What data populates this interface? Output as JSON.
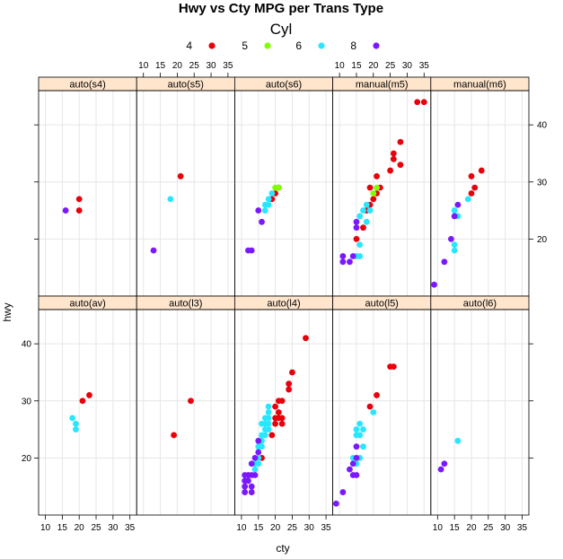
{
  "chart_data": {
    "type": "scatter",
    "title": "Hwy vs Cty MPG per Trans Type",
    "xlabel": "cty",
    "ylabel": "hwy",
    "xlim": [
      8,
      37
    ],
    "ylim": [
      10,
      46
    ],
    "x_ticks": [
      10,
      15,
      20,
      25,
      30,
      35
    ],
    "y_ticks": [
      20,
      30,
      40
    ],
    "grid": true,
    "legend": {
      "title": "Cyl",
      "position": "top",
      "entries": [
        {
          "label": "4",
          "color": "#e8000b"
        },
        {
          "label": "5",
          "color": "#80ff00"
        },
        {
          "label": "6",
          "color": "#29e6ff"
        },
        {
          "label": "8",
          "color": "#7b18ff"
        }
      ]
    },
    "strip_color": "#ffe5cc",
    "panels": [
      {
        "label": "auto(s4)",
        "row": 0,
        "col": 0,
        "points": [
          {
            "x": 20,
            "y": 27,
            "cyl": "4"
          },
          {
            "x": 20,
            "y": 25,
            "cyl": "4"
          },
          {
            "x": 16,
            "y": 25,
            "cyl": "8"
          }
        ]
      },
      {
        "label": "auto(s5)",
        "row": 0,
        "col": 1,
        "points": [
          {
            "x": 21,
            "y": 31,
            "cyl": "4"
          },
          {
            "x": 18,
            "y": 27,
            "cyl": "6"
          },
          {
            "x": 13,
            "y": 18,
            "cyl": "8"
          }
        ]
      },
      {
        "label": "auto(s6)",
        "row": 0,
        "col": 2,
        "points": [
          {
            "x": 21,
            "y": 29,
            "cyl": "4"
          },
          {
            "x": 19,
            "y": 27,
            "cyl": "4"
          },
          {
            "x": 20,
            "y": 28,
            "cyl": "4"
          },
          {
            "x": 20,
            "y": 29,
            "cyl": "5"
          },
          {
            "x": 21,
            "y": 29,
            "cyl": "5"
          },
          {
            "x": 17,
            "y": 25,
            "cyl": "6"
          },
          {
            "x": 17,
            "y": 26,
            "cyl": "6"
          },
          {
            "x": 18,
            "y": 26,
            "cyl": "6"
          },
          {
            "x": 19,
            "y": 28,
            "cyl": "6"
          },
          {
            "x": 18,
            "y": 27,
            "cyl": "6"
          },
          {
            "x": 15,
            "y": 25,
            "cyl": "8"
          },
          {
            "x": 16,
            "y": 23,
            "cyl": "8"
          },
          {
            "x": 12,
            "y": 18,
            "cyl": "8"
          },
          {
            "x": 13,
            "y": 18,
            "cyl": "8"
          }
        ]
      },
      {
        "label": "manual(m5)",
        "row": 0,
        "col": 3,
        "points": [
          {
            "x": 33,
            "y": 44,
            "cyl": "4"
          },
          {
            "x": 35,
            "y": 44,
            "cyl": "4"
          },
          {
            "x": 28,
            "y": 37,
            "cyl": "4"
          },
          {
            "x": 26,
            "y": 35,
            "cyl": "4"
          },
          {
            "x": 26,
            "y": 34,
            "cyl": "4"
          },
          {
            "x": 28,
            "y": 33,
            "cyl": "4"
          },
          {
            "x": 25,
            "y": 32,
            "cyl": "4"
          },
          {
            "x": 21,
            "y": 31,
            "cyl": "4"
          },
          {
            "x": 22,
            "y": 29,
            "cyl": "4"
          },
          {
            "x": 19,
            "y": 29,
            "cyl": "4"
          },
          {
            "x": 21,
            "y": 28,
            "cyl": "4"
          },
          {
            "x": 20,
            "y": 27,
            "cyl": "4"
          },
          {
            "x": 19,
            "y": 26,
            "cyl": "4"
          },
          {
            "x": 18,
            "y": 25,
            "cyl": "4"
          },
          {
            "x": 17,
            "y": 22,
            "cyl": "4"
          },
          {
            "x": 15,
            "y": 20,
            "cyl": "4"
          },
          {
            "x": 20,
            "y": 28,
            "cyl": "5"
          },
          {
            "x": 21,
            "y": 29,
            "cyl": "5"
          },
          {
            "x": 18,
            "y": 26,
            "cyl": "6"
          },
          {
            "x": 17,
            "y": 25,
            "cyl": "6"
          },
          {
            "x": 19,
            "y": 25,
            "cyl": "6"
          },
          {
            "x": 16,
            "y": 24,
            "cyl": "6"
          },
          {
            "x": 18,
            "y": 23,
            "cyl": "6"
          },
          {
            "x": 16,
            "y": 19,
            "cyl": "6"
          },
          {
            "x": 15,
            "y": 17,
            "cyl": "6"
          },
          {
            "x": 16,
            "y": 17,
            "cyl": "6"
          },
          {
            "x": 15,
            "y": 23,
            "cyl": "8"
          },
          {
            "x": 15,
            "y": 22,
            "cyl": "8"
          },
          {
            "x": 14,
            "y": 17,
            "cyl": "8"
          },
          {
            "x": 11,
            "y": 17,
            "cyl": "8"
          },
          {
            "x": 11,
            "y": 16,
            "cyl": "8"
          },
          {
            "x": 13,
            "y": 16,
            "cyl": "8"
          }
        ]
      },
      {
        "label": "manual(m6)",
        "row": 0,
        "col": 4,
        "points": [
          {
            "x": 23,
            "y": 32,
            "cyl": "4"
          },
          {
            "x": 20,
            "y": 31,
            "cyl": "4"
          },
          {
            "x": 21,
            "y": 29,
            "cyl": "4"
          },
          {
            "x": 20,
            "y": 28,
            "cyl": "4"
          },
          {
            "x": 19,
            "y": 27,
            "cyl": "6"
          },
          {
            "x": 15,
            "y": 25,
            "cyl": "6"
          },
          {
            "x": 16,
            "y": 24,
            "cyl": "6"
          },
          {
            "x": 15,
            "y": 19,
            "cyl": "6"
          },
          {
            "x": 15,
            "y": 18,
            "cyl": "6"
          },
          {
            "x": 16,
            "y": 26,
            "cyl": "8"
          },
          {
            "x": 15,
            "y": 24,
            "cyl": "8"
          },
          {
            "x": 14,
            "y": 20,
            "cyl": "8"
          },
          {
            "x": 12,
            "y": 16,
            "cyl": "8"
          },
          {
            "x": 9,
            "y": 12,
            "cyl": "8"
          }
        ]
      },
      {
        "label": "auto(av)",
        "row": 1,
        "col": 0,
        "points": [
          {
            "x": 23,
            "y": 31,
            "cyl": "4"
          },
          {
            "x": 21,
            "y": 30,
            "cyl": "4"
          },
          {
            "x": 18,
            "y": 27,
            "cyl": "6"
          },
          {
            "x": 19,
            "y": 26,
            "cyl": "6"
          },
          {
            "x": 19,
            "y": 25,
            "cyl": "6"
          }
        ]
      },
      {
        "label": "auto(l3)",
        "row": 1,
        "col": 1,
        "points": [
          {
            "x": 24,
            "y": 30,
            "cyl": "4"
          },
          {
            "x": 19,
            "y": 24,
            "cyl": "4"
          }
        ]
      },
      {
        "label": "auto(l4)",
        "row": 1,
        "col": 2,
        "points": [
          {
            "x": 29,
            "y": 41,
            "cyl": "4"
          },
          {
            "x": 25,
            "y": 35,
            "cyl": "4"
          },
          {
            "x": 24,
            "y": 33,
            "cyl": "4"
          },
          {
            "x": 24,
            "y": 32,
            "cyl": "4"
          },
          {
            "x": 21,
            "y": 30,
            "cyl": "4"
          },
          {
            "x": 22,
            "y": 30,
            "cyl": "4"
          },
          {
            "x": 20,
            "y": 29,
            "cyl": "4"
          },
          {
            "x": 21,
            "y": 28,
            "cyl": "4"
          },
          {
            "x": 22,
            "y": 27,
            "cyl": "4"
          },
          {
            "x": 20,
            "y": 27,
            "cyl": "4"
          },
          {
            "x": 21,
            "y": 27,
            "cyl": "4"
          },
          {
            "x": 22,
            "y": 26,
            "cyl": "4"
          },
          {
            "x": 20,
            "y": 26,
            "cyl": "4"
          },
          {
            "x": 19,
            "y": 24,
            "cyl": "4"
          },
          {
            "x": 16,
            "y": 20,
            "cyl": "4"
          },
          {
            "x": 18,
            "y": 29,
            "cyl": "6"
          },
          {
            "x": 18,
            "y": 28,
            "cyl": "6"
          },
          {
            "x": 18,
            "y": 27,
            "cyl": "6"
          },
          {
            "x": 17,
            "y": 27,
            "cyl": "6"
          },
          {
            "x": 17,
            "y": 26,
            "cyl": "6"
          },
          {
            "x": 16,
            "y": 26,
            "cyl": "6"
          },
          {
            "x": 18,
            "y": 26,
            "cyl": "6"
          },
          {
            "x": 17,
            "y": 25,
            "cyl": "6"
          },
          {
            "x": 18,
            "y": 25,
            "cyl": "6"
          },
          {
            "x": 16,
            "y": 24,
            "cyl": "6"
          },
          {
            "x": 17,
            "y": 24,
            "cyl": "6"
          },
          {
            "x": 16,
            "y": 23,
            "cyl": "6"
          },
          {
            "x": 15,
            "y": 22,
            "cyl": "6"
          },
          {
            "x": 16,
            "y": 22,
            "cyl": "6"
          },
          {
            "x": 15,
            "y": 20,
            "cyl": "6"
          },
          {
            "x": 14,
            "y": 19,
            "cyl": "6"
          },
          {
            "x": 15,
            "y": 19,
            "cyl": "6"
          },
          {
            "x": 14,
            "y": 18,
            "cyl": "6"
          },
          {
            "x": 15,
            "y": 23,
            "cyl": "8"
          },
          {
            "x": 15,
            "y": 21,
            "cyl": "8"
          },
          {
            "x": 14,
            "y": 20,
            "cyl": "8"
          },
          {
            "x": 13,
            "y": 19,
            "cyl": "8"
          },
          {
            "x": 13,
            "y": 17,
            "cyl": "8"
          },
          {
            "x": 14,
            "y": 17,
            "cyl": "8"
          },
          {
            "x": 11,
            "y": 17,
            "cyl": "8"
          },
          {
            "x": 12,
            "y": 17,
            "cyl": "8"
          },
          {
            "x": 11,
            "y": 16,
            "cyl": "8"
          },
          {
            "x": 12,
            "y": 16,
            "cyl": "8"
          },
          {
            "x": 11,
            "y": 15,
            "cyl": "8"
          },
          {
            "x": 13,
            "y": 15,
            "cyl": "8"
          },
          {
            "x": 11,
            "y": 14,
            "cyl": "8"
          },
          {
            "x": 13,
            "y": 14,
            "cyl": "8"
          }
        ]
      },
      {
        "label": "auto(l5)",
        "row": 1,
        "col": 3,
        "points": [
          {
            "x": 25,
            "y": 36,
            "cyl": "4"
          },
          {
            "x": 26,
            "y": 36,
            "cyl": "4"
          },
          {
            "x": 21,
            "y": 31,
            "cyl": "4"
          },
          {
            "x": 19,
            "y": 29,
            "cyl": "4"
          },
          {
            "x": 20,
            "y": 28,
            "cyl": "6"
          },
          {
            "x": 16,
            "y": 26,
            "cyl": "6"
          },
          {
            "x": 17,
            "y": 25,
            "cyl": "6"
          },
          {
            "x": 15,
            "y": 25,
            "cyl": "6"
          },
          {
            "x": 16,
            "y": 24,
            "cyl": "6"
          },
          {
            "x": 15,
            "y": 24,
            "cyl": "6"
          },
          {
            "x": 17,
            "y": 22,
            "cyl": "6"
          },
          {
            "x": 16,
            "y": 20,
            "cyl": "6"
          },
          {
            "x": 14,
            "y": 20,
            "cyl": "6"
          },
          {
            "x": 15,
            "y": 19,
            "cyl": "6"
          },
          {
            "x": 15,
            "y": 22,
            "cyl": "8"
          },
          {
            "x": 15,
            "y": 20,
            "cyl": "8"
          },
          {
            "x": 14,
            "y": 19,
            "cyl": "8"
          },
          {
            "x": 13,
            "y": 18,
            "cyl": "8"
          },
          {
            "x": 14,
            "y": 17,
            "cyl": "8"
          },
          {
            "x": 15,
            "y": 17,
            "cyl": "8"
          },
          {
            "x": 11,
            "y": 14,
            "cyl": "8"
          },
          {
            "x": 9,
            "y": 12,
            "cyl": "8"
          }
        ]
      },
      {
        "label": "auto(l6)",
        "row": 1,
        "col": 4,
        "points": [
          {
            "x": 16,
            "y": 23,
            "cyl": "6"
          },
          {
            "x": 12,
            "y": 19,
            "cyl": "8"
          },
          {
            "x": 11,
            "y": 18,
            "cyl": "8"
          }
        ]
      }
    ]
  }
}
